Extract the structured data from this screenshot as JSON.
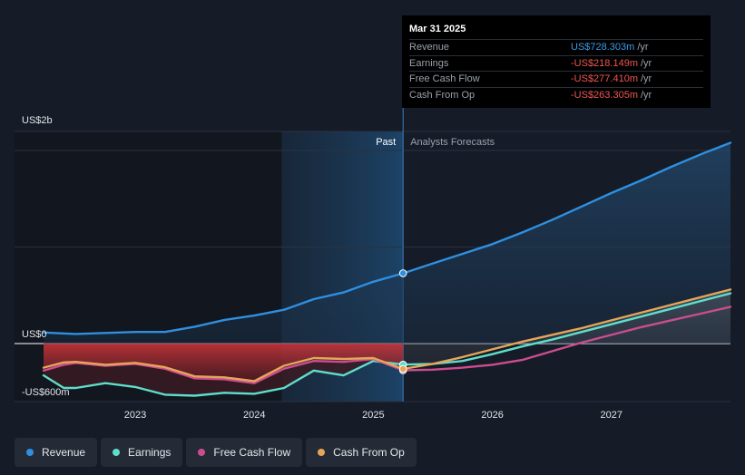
{
  "chart_data": {
    "type": "line",
    "title": "",
    "ylabel": "",
    "y_unit": "US$m",
    "ylim": [
      -600,
      2000
    ],
    "y_tick_labels": [
      {
        "value": 2000,
        "label": "US$2b"
      },
      {
        "value": 0,
        "label": "US$0"
      },
      {
        "value": -600,
        "label": "-US$600m"
      }
    ],
    "x_ticks": [
      {
        "value": 2023,
        "label": "2023"
      },
      {
        "value": 2024,
        "label": "2024"
      },
      {
        "value": 2025,
        "label": "2025"
      },
      {
        "value": 2026,
        "label": "2026"
      },
      {
        "value": 2027,
        "label": "2027"
      }
    ],
    "xlim": [
      2022.23,
      2028.0
    ],
    "past_label": "Past",
    "forecast_label": "Analysts Forecasts",
    "past_region_start": 2024.23,
    "divider_x": 2025.25,
    "series": [
      {
        "name": "Revenue",
        "color": "#2f8fe0",
        "fill": "#1d4466",
        "points": [
          [
            2022.23,
            115
          ],
          [
            2022.5,
            100
          ],
          [
            2022.75,
            110
          ],
          [
            2023.0,
            120
          ],
          [
            2023.25,
            120
          ],
          [
            2023.5,
            175
          ],
          [
            2023.75,
            245
          ],
          [
            2024.0,
            290
          ],
          [
            2024.25,
            350
          ],
          [
            2024.5,
            460
          ],
          [
            2024.75,
            530
          ],
          [
            2025.0,
            640
          ],
          [
            2025.25,
            728
          ],
          [
            2025.5,
            830
          ],
          [
            2025.75,
            930
          ],
          [
            2026.0,
            1030
          ],
          [
            2026.25,
            1150
          ],
          [
            2026.5,
            1280
          ],
          [
            2026.75,
            1420
          ],
          [
            2027.0,
            1560
          ],
          [
            2027.25,
            1690
          ],
          [
            2027.5,
            1830
          ],
          [
            2027.75,
            1960
          ],
          [
            2028.0,
            2080
          ]
        ]
      },
      {
        "name": "Earnings",
        "color": "#5fdecb",
        "fill": "#3a4a52",
        "points": [
          [
            2022.23,
            -330
          ],
          [
            2022.4,
            -460
          ],
          [
            2022.5,
            -460
          ],
          [
            2022.75,
            -410
          ],
          [
            2023.0,
            -450
          ],
          [
            2023.25,
            -530
          ],
          [
            2023.5,
            -540
          ],
          [
            2023.75,
            -510
          ],
          [
            2024.0,
            -520
          ],
          [
            2024.25,
            -460
          ],
          [
            2024.5,
            -280
          ],
          [
            2024.75,
            -330
          ],
          [
            2025.0,
            -180
          ],
          [
            2025.25,
            -218
          ],
          [
            2025.5,
            -210
          ],
          [
            2025.75,
            -180
          ],
          [
            2026.0,
            -110
          ],
          [
            2026.25,
            -30
          ],
          [
            2026.5,
            40
          ],
          [
            2026.75,
            120
          ],
          [
            2027.0,
            200
          ],
          [
            2027.25,
            280
          ],
          [
            2027.5,
            360
          ],
          [
            2027.75,
            440
          ],
          [
            2028.0,
            520
          ]
        ]
      },
      {
        "name": "Free Cash Flow",
        "color": "#cc4d8e",
        "fill": "#5a2c45",
        "points": [
          [
            2022.23,
            -280
          ],
          [
            2022.4,
            -220
          ],
          [
            2022.5,
            -200
          ],
          [
            2022.75,
            -230
          ],
          [
            2023.0,
            -210
          ],
          [
            2023.25,
            -260
          ],
          [
            2023.5,
            -360
          ],
          [
            2023.75,
            -370
          ],
          [
            2024.0,
            -410
          ],
          [
            2024.25,
            -260
          ],
          [
            2024.5,
            -180
          ],
          [
            2024.75,
            -190
          ],
          [
            2025.0,
            -160
          ],
          [
            2025.25,
            -277
          ],
          [
            2025.5,
            -270
          ],
          [
            2025.75,
            -250
          ],
          [
            2026.0,
            -220
          ],
          [
            2026.25,
            -170
          ],
          [
            2026.5,
            -80
          ],
          [
            2026.75,
            10
          ],
          [
            2027.0,
            90
          ],
          [
            2027.25,
            170
          ],
          [
            2027.5,
            240
          ],
          [
            2027.75,
            310
          ],
          [
            2028.0,
            380
          ]
        ]
      },
      {
        "name": "Cash From Op",
        "color": "#e6a659",
        "fill": "#6a4530",
        "points": [
          [
            2022.23,
            -250
          ],
          [
            2022.4,
            -195
          ],
          [
            2022.5,
            -190
          ],
          [
            2022.75,
            -220
          ],
          [
            2023.0,
            -200
          ],
          [
            2023.25,
            -245
          ],
          [
            2023.5,
            -340
          ],
          [
            2023.75,
            -350
          ],
          [
            2024.0,
            -390
          ],
          [
            2024.25,
            -230
          ],
          [
            2024.5,
            -150
          ],
          [
            2024.75,
            -160
          ],
          [
            2025.0,
            -150
          ],
          [
            2025.25,
            -263
          ],
          [
            2025.5,
            -210
          ],
          [
            2025.75,
            -140
          ],
          [
            2026.0,
            -60
          ],
          [
            2026.25,
            20
          ],
          [
            2026.5,
            90
          ],
          [
            2026.75,
            160
          ],
          [
            2027.0,
            240
          ],
          [
            2027.25,
            320
          ],
          [
            2027.5,
            400
          ],
          [
            2027.75,
            480
          ],
          [
            2028.0,
            560
          ]
        ]
      }
    ]
  },
  "tooltip": {
    "date": "Mar 31 2025",
    "rows": [
      {
        "label": "Revenue",
        "value": "US$728.303m",
        "unit": "/yr",
        "color": "#3b9ae8"
      },
      {
        "label": "Earnings",
        "value": "-US$218.149m",
        "unit": "/yr",
        "color": "#f05454"
      },
      {
        "label": "Free Cash Flow",
        "value": "-US$277.410m",
        "unit": "/yr",
        "color": "#f05454"
      },
      {
        "label": "Cash From Op",
        "value": "-US$263.305m",
        "unit": "/yr",
        "color": "#f05454"
      }
    ]
  },
  "legend": [
    {
      "label": "Revenue",
      "color": "#2f8fe0"
    },
    {
      "label": "Earnings",
      "color": "#5fdecb"
    },
    {
      "label": "Free Cash Flow",
      "color": "#cc4d8e"
    },
    {
      "label": "Cash From Op",
      "color": "#e6a659"
    }
  ]
}
